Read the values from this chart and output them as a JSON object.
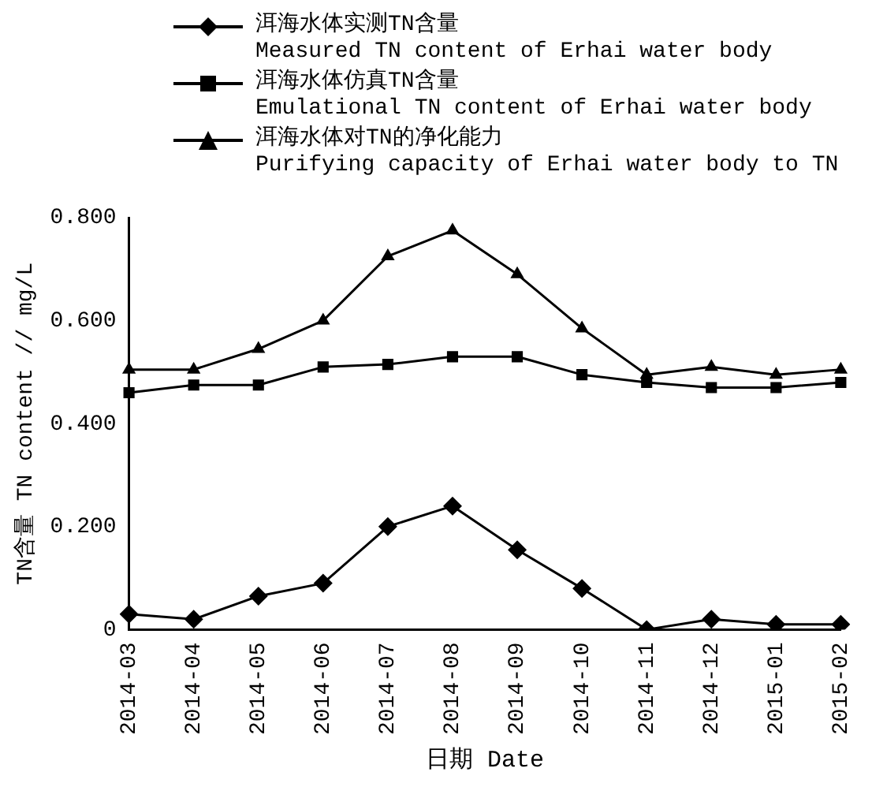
{
  "chart_data": {
    "type": "line",
    "xlabel": "日期 Date",
    "ylabel": "TN含量 TN content // mg/L",
    "categories": [
      "2014-03",
      "2014-04",
      "2014-05",
      "2014-06",
      "2014-07",
      "2014-08",
      "2014-09",
      "2014-10",
      "2014-11",
      "2014-12",
      "2015-01",
      "2015-02"
    ],
    "series": [
      {
        "name": "洱海水体实测TN含量\nMeasured TN content of Erhai water body",
        "color": "#000000",
        "marker": "diamond",
        "values": [
          0.03,
          0.02,
          0.065,
          0.09,
          0.2,
          0.24,
          0.155,
          0.08,
          0.0,
          0.02,
          0.01,
          0.01
        ]
      },
      {
        "name": "洱海水体仿真TN含量\nEmulational TN content of Erhai water body",
        "color": "#000000",
        "marker": "square",
        "values": [
          0.46,
          0.475,
          0.475,
          0.51,
          0.515,
          0.53,
          0.53,
          0.495,
          0.48,
          0.47,
          0.47,
          0.48
        ]
      },
      {
        "name": "洱海水体对TN的净化能力\nPurifying capacity of Erhai water body to TN",
        "color": "#000000",
        "marker": "triangle",
        "values": [
          0.505,
          0.505,
          0.545,
          0.6,
          0.725,
          0.775,
          0.69,
          0.585,
          0.495,
          0.51,
          0.495,
          0.505
        ]
      }
    ],
    "ylim": [
      0,
      0.8
    ],
    "yticks": [
      {
        "value": 0,
        "label": "0"
      },
      {
        "value": 0.2,
        "label": "0.200"
      },
      {
        "value": 0.4,
        "label": "0.400"
      },
      {
        "value": 0.6,
        "label": "0.600"
      },
      {
        "value": 0.8,
        "label": "0.800"
      }
    ],
    "grid": false,
    "legend": "top",
    "line_style": "solid"
  }
}
